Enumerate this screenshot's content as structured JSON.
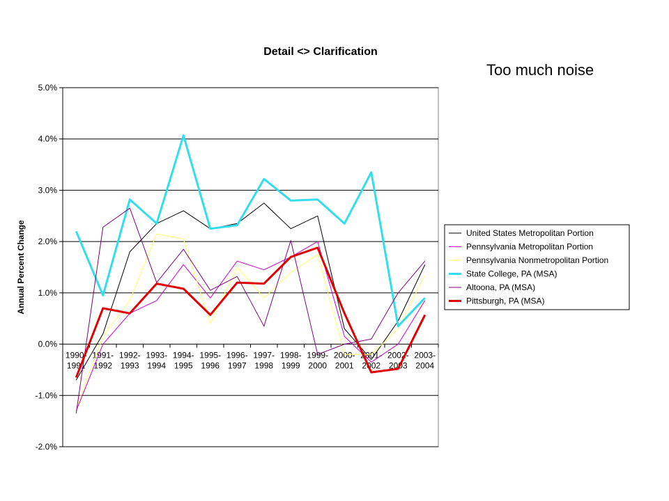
{
  "note": "Too much noise",
  "chart_data": {
    "type": "line",
    "title": "Detail <> Clarification",
    "xlabel": "",
    "ylabel": "Annual Percent Change",
    "ylim": [
      -2.0,
      5.0
    ],
    "y_ticks": [
      -2.0,
      -1.0,
      0.0,
      1.0,
      2.0,
      3.0,
      4.0,
      5.0
    ],
    "y_tick_labels": [
      "-2.0%",
      "-1.0%",
      "0.0%",
      "1.0%",
      "2.0%",
      "3.0%",
      "4.0%",
      "5.0%"
    ],
    "grid": "horizontal",
    "legend_position": "right",
    "categories": [
      [
        "1990-",
        "1991"
      ],
      [
        "1991-",
        "1992"
      ],
      [
        "1992-",
        "1993"
      ],
      [
        "1993-",
        "1994"
      ],
      [
        "1994-",
        "1995"
      ],
      [
        "1995-",
        "1996"
      ],
      [
        "1996-",
        "1997"
      ],
      [
        "1997-",
        "1998"
      ],
      [
        "1998-",
        "1999"
      ],
      [
        "1999-",
        "2000"
      ],
      [
        "2000-",
        "2001"
      ],
      [
        "2001-",
        "2002"
      ],
      [
        "2002-",
        "2003"
      ],
      [
        "2003-",
        "2004"
      ]
    ],
    "series": [
      {
        "name": "United States Metropolitan Portion",
        "color": "#000000",
        "width": 1,
        "values": [
          -0.7,
          0.2,
          1.8,
          2.35,
          2.6,
          2.25,
          2.35,
          2.75,
          2.25,
          2.5,
          0.3,
          -0.3,
          0.45,
          1.55
        ]
      },
      {
        "name": "Pennsylvania Metropolitan Portion",
        "color": "#cc00cc",
        "width": 1,
        "values": [
          -1.3,
          0.0,
          0.6,
          0.85,
          1.55,
          0.9,
          1.62,
          1.45,
          1.7,
          2.0,
          0.15,
          -0.35,
          0.0,
          0.85
        ]
      },
      {
        "name": "Pennsylvania Nonmetropolitan Portion",
        "color": "#ffff66",
        "width": 1,
        "values": [
          -1.25,
          0.15,
          0.85,
          2.15,
          2.05,
          0.4,
          1.5,
          0.9,
          1.4,
          1.75,
          -0.2,
          -0.2,
          0.3,
          1.35
        ]
      },
      {
        "name": "State College, PA (MSA)",
        "color": "#33ddee",
        "width": 3,
        "values": [
          2.2,
          0.95,
          2.82,
          2.35,
          4.07,
          2.25,
          2.32,
          3.22,
          2.8,
          2.82,
          2.35,
          3.35,
          0.35,
          0.9
        ]
      },
      {
        "name": "Altoona, PA (MSA)",
        "color": "#800080",
        "width": 1,
        "values": [
          -1.35,
          2.28,
          2.65,
          1.2,
          1.85,
          1.05,
          1.32,
          0.35,
          2.02,
          -0.2,
          0.0,
          0.1,
          1.0,
          1.62
        ]
      },
      {
        "name": "Pittsburgh, PA (MSA)",
        "color": "#e00000",
        "width": 3,
        "values": [
          -0.65,
          0.7,
          0.6,
          1.18,
          1.08,
          0.57,
          1.2,
          1.18,
          1.7,
          1.88,
          0.6,
          -0.55,
          -0.48,
          0.57
        ]
      }
    ]
  }
}
